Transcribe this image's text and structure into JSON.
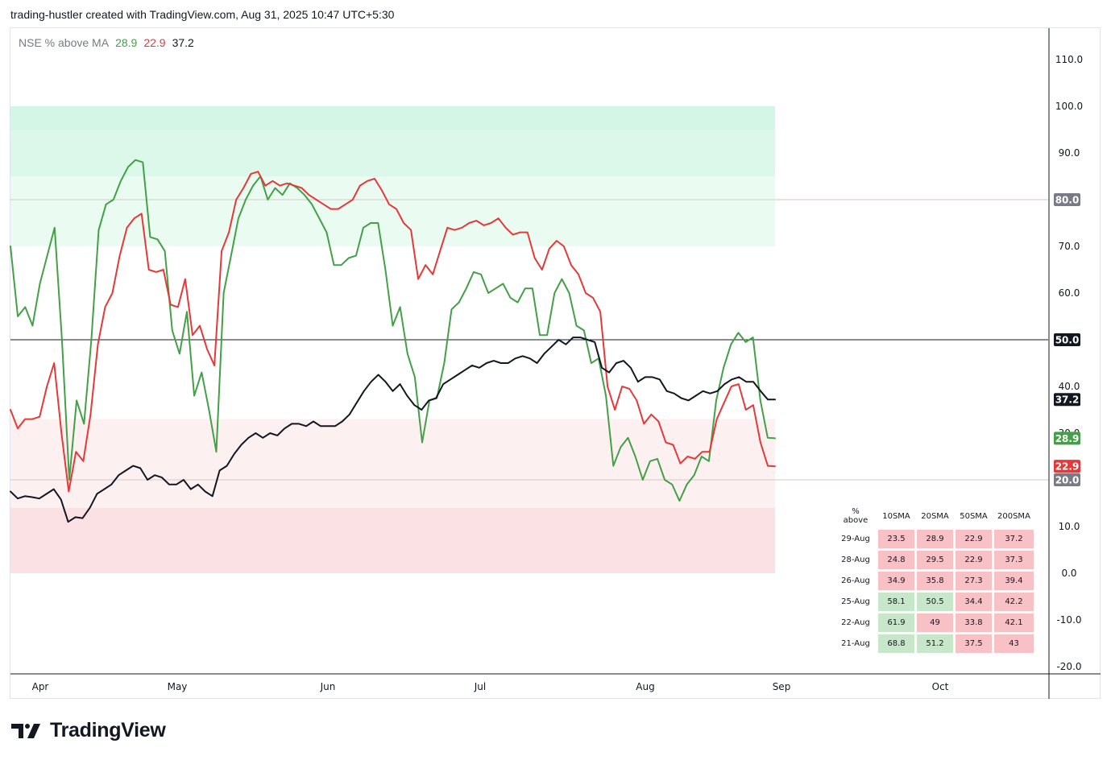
{
  "header": {
    "attribution": "trading-hustler created with TradingView.com, Aug 31, 2025 10:47 UTC+5:30"
  },
  "legend": {
    "name": "NSE % above MA",
    "v1": "28.9",
    "v2": "22.9",
    "v3": "37.2"
  },
  "brand": {
    "name": "TradingView"
  },
  "colors": {
    "green": "#43a047",
    "red": "#e53939",
    "black": "#131722",
    "zone_high": "#d9f7e8",
    "zone_low": "#fce4e6"
  },
  "chart_data": {
    "type": "line",
    "title": "NSE % above MA",
    "x_ticks": [
      "Apr",
      "May",
      "Jun",
      "Jul",
      "Aug",
      "Sep",
      "Oct"
    ],
    "y_ticks": [
      110.0,
      100.0,
      90.0,
      80.0,
      70.0,
      60.0,
      50.0,
      40.0,
      30.0,
      10.0,
      0.0,
      -10.0,
      -20.0
    ],
    "ylim": [
      -22,
      115
    ],
    "y_axis_side": "right",
    "grid": false,
    "reference_lines": [
      80,
      50,
      20
    ],
    "zones": [
      {
        "from": 70,
        "to": 100,
        "meaning": "overbought"
      },
      {
        "from": 0,
        "to": 33,
        "meaning": "oversold"
      }
    ],
    "last_value_labels": [
      {
        "value": 80.0,
        "text": "80.0",
        "color": "#787b86"
      },
      {
        "value": 50.0,
        "text": "50.0",
        "color": "#131722"
      },
      {
        "value": 37.2,
        "text": "37.2",
        "color": "#131722"
      },
      {
        "value": 28.9,
        "text": "28.9",
        "color": "#43a047"
      },
      {
        "value": 22.9,
        "text": "22.9",
        "color": "#e53939"
      },
      {
        "value": 20.0,
        "text": "20.0",
        "color": "#787b86"
      }
    ],
    "series": [
      {
        "color": "#43a047",
        "values": [
          70,
          55,
          57,
          53,
          62,
          68,
          74,
          50,
          20,
          37,
          32,
          50,
          73.5,
          79,
          80,
          84,
          87,
          88.5,
          88,
          72,
          71.5,
          69,
          52,
          47,
          56,
          38,
          43,
          35,
          26,
          60,
          68,
          76,
          80,
          83,
          85,
          80,
          82.5,
          81,
          83.5,
          82.5,
          81,
          79,
          76,
          73,
          66,
          66,
          67.5,
          68,
          74,
          75,
          75,
          65,
          53,
          57,
          47,
          42,
          28,
          37,
          37.5,
          45,
          56.5,
          58,
          61,
          64.5,
          64,
          60,
          61,
          62,
          59,
          58,
          61,
          61,
          51,
          51,
          60,
          63,
          60,
          53,
          52,
          45,
          46,
          38,
          23,
          27,
          29,
          25,
          20,
          24,
          24.5,
          20,
          19,
          15.5,
          19,
          21,
          25,
          24,
          37,
          44,
          49,
          51.5,
          49.5,
          50.5,
          37,
          29,
          28.9
        ]
      },
      {
        "color": "#e53939",
        "values": [
          35,
          31,
          33,
          33,
          33.5,
          40,
          45,
          30,
          17.5,
          26,
          24,
          34,
          49,
          57,
          60,
          68,
          74,
          76,
          77,
          65,
          64.5,
          65,
          57.5,
          57,
          63,
          51,
          53,
          48,
          44.5,
          69,
          73,
          80,
          82.5,
          85.5,
          86,
          83,
          84,
          83,
          83.5,
          83,
          82.5,
          81,
          80,
          79,
          78,
          78,
          79,
          80,
          83,
          84,
          84.5,
          82,
          79,
          78,
          75,
          73.5,
          63,
          66,
          64,
          69,
          74,
          73.5,
          74,
          75,
          75.5,
          74.5,
          75,
          76,
          74,
          72.5,
          73,
          73,
          67.5,
          65,
          69.5,
          71.2,
          70,
          66,
          64,
          60,
          59,
          56,
          40,
          35,
          40,
          39.5,
          37,
          32,
          34,
          32.5,
          28,
          27.5,
          23.5,
          25,
          24.5,
          26,
          26,
          33,
          36.5,
          40,
          40.5,
          35,
          36,
          28,
          23,
          22.9
        ]
      },
      {
        "color": "#131722",
        "values": [
          17.5,
          16,
          16.5,
          16.3,
          16,
          17,
          18,
          15.8,
          11,
          12,
          11.8,
          14,
          17,
          18,
          19,
          21,
          22,
          23,
          22.5,
          20,
          21,
          20.5,
          19,
          19,
          20,
          18,
          19,
          17.5,
          16.5,
          22,
          23,
          25.5,
          27.5,
          29,
          30,
          29,
          30,
          29.5,
          31,
          32,
          32,
          31.5,
          32.5,
          31.5,
          31.5,
          31.5,
          32.5,
          34,
          36.5,
          39,
          41,
          42.5,
          41,
          39,
          40.5,
          38,
          36,
          35,
          37,
          37.5,
          40.5,
          41.5,
          42.5,
          43.5,
          44.5,
          44,
          45,
          45.5,
          45,
          45,
          46,
          46.5,
          46,
          45,
          47,
          48.5,
          50,
          49,
          50.5,
          50.5,
          50,
          49.5,
          44,
          43,
          45,
          45.5,
          44,
          41,
          42,
          42,
          41.5,
          39,
          38.5,
          37.5,
          37,
          38,
          39,
          38.5,
          39,
          40.5,
          41.5,
          42,
          41,
          41,
          39,
          37.2,
          37.2
        ]
      }
    ],
    "table": {
      "headers": [
        "% above",
        "10SMA",
        "20SMA",
        "50SMA",
        "200SMA"
      ],
      "rows": [
        [
          "29-Aug",
          "23.5",
          "28.9",
          "22.9",
          "37.2"
        ],
        [
          "28-Aug",
          "24.8",
          "29.5",
          "22.9",
          "37.3"
        ],
        [
          "26-Aug",
          "34.9",
          "35.8",
          "27.3",
          "39.4"
        ],
        [
          "25-Aug",
          "58.1",
          "50.5",
          "34.4",
          "42.2"
        ],
        [
          "22-Aug",
          "61.9",
          "49",
          "33.8",
          "42.1"
        ],
        [
          "21-Aug",
          "68.8",
          "51.2",
          "37.5",
          "43"
        ]
      ]
    }
  }
}
